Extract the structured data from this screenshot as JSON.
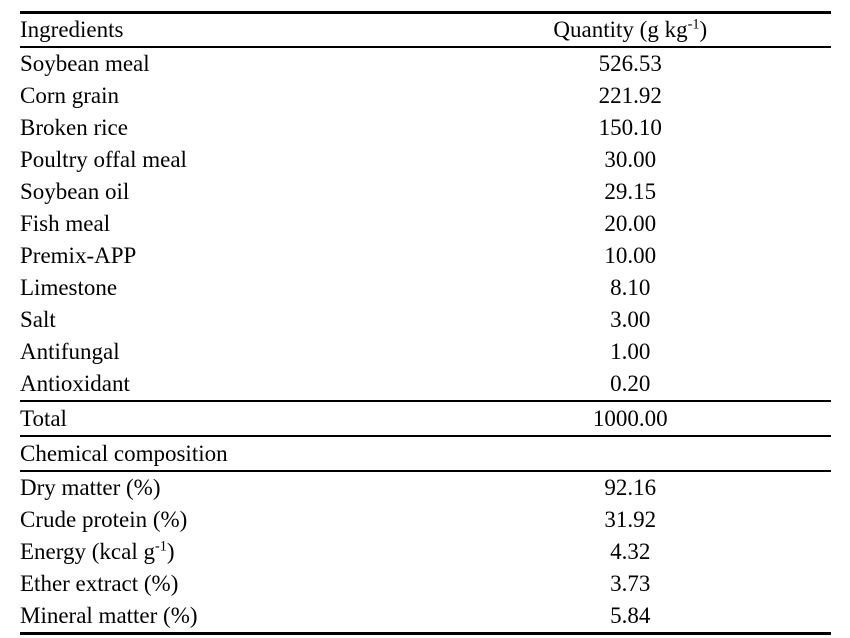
{
  "page": {
    "background": "#ffffff",
    "text_color": "#000000",
    "rule_color": "#000000"
  },
  "table": {
    "columns": [
      {
        "label": "Ingredients"
      },
      {
        "label": "Quantity (g kg^{-1})"
      }
    ],
    "ingredients": [
      {
        "label": "Soybean meal",
        "value": "526.53"
      },
      {
        "label": "Corn grain",
        "value": "221.92"
      },
      {
        "label": "Broken rice",
        "value": "150.10"
      },
      {
        "label": "Poultry offal meal",
        "value": "30.00"
      },
      {
        "label": "Soybean oil",
        "value": "29.15"
      },
      {
        "label": "Fish meal",
        "value": "20.00"
      },
      {
        "label": "Premix-APP",
        "value": "10.00"
      },
      {
        "label": "Limestone",
        "value": "8.10"
      },
      {
        "label": "Salt",
        "value": "3.00"
      },
      {
        "label": "Antifungal",
        "value": "1.00"
      },
      {
        "label": "Antioxidant",
        "value": "0.20"
      }
    ],
    "total": {
      "label": "Total",
      "value": "1000.00"
    },
    "section_header": "Chemical composition",
    "composition": [
      {
        "label": "Dry matter (%)",
        "value": "92.16"
      },
      {
        "label": "Crude protein (%)",
        "value": "31.92"
      },
      {
        "label": "Energy (kcal g^{-1})",
        "value": "4.32"
      },
      {
        "label": "Ether extract (%)",
        "value": "3.73"
      },
      {
        "label": "Mineral matter (%)",
        "value": "5.84"
      }
    ]
  }
}
